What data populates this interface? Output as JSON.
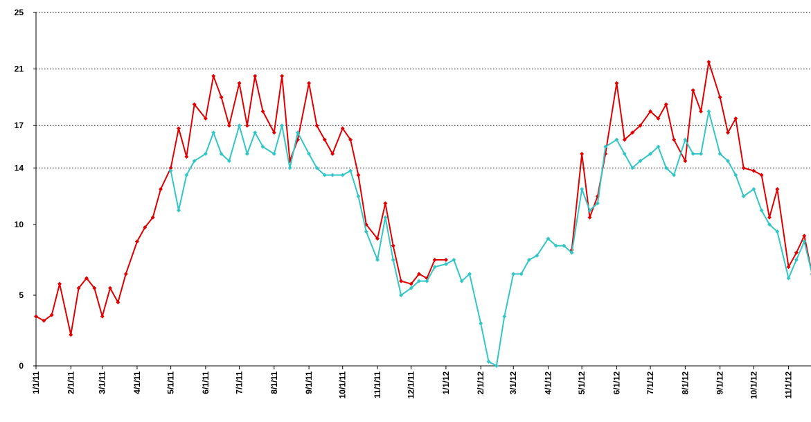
{
  "chart_data": {
    "type": "line",
    "x": [
      "1/1/11",
      "1/8/11",
      "1/15/11",
      "1/22/11",
      "2/1/11",
      "2/8/11",
      "2/15/11",
      "2/22/11",
      "3/1/11",
      "3/8/11",
      "3/15/11",
      "3/22/11",
      "4/1/11",
      "4/8/11",
      "4/15/11",
      "4/22/11",
      "5/1/11",
      "5/8/11",
      "5/15/11",
      "5/22/11",
      "6/1/11",
      "6/8/11",
      "6/15/11",
      "6/22/11",
      "7/1/11",
      "7/8/11",
      "7/15/11",
      "7/22/11",
      "8/1/11",
      "8/8/11",
      "8/15/11",
      "8/22/11",
      "9/1/11",
      "9/8/11",
      "9/15/11",
      "9/22/11",
      "10/1/11",
      "10/8/11",
      "10/15/11",
      "10/22/11",
      "11/1/11",
      "11/8/11",
      "11/15/11",
      "11/22/11",
      "12/1/11",
      "12/8/11",
      "12/15/11",
      "12/22/11",
      "1/1/12",
      "1/8/12",
      "1/15/12",
      "1/22/12",
      "2/1/12",
      "2/8/12",
      "2/15/12",
      "2/22/12",
      "3/1/12",
      "3/8/12",
      "3/15/12",
      "3/22/12",
      "4/1/12",
      "4/8/12",
      "4/15/12",
      "4/22/12",
      "5/1/12",
      "5/8/12",
      "5/15/12",
      "5/22/12",
      "6/1/12",
      "6/8/12",
      "6/15/12",
      "6/22/12",
      "7/1/12",
      "7/8/12",
      "7/15/12",
      "7/22/12",
      "8/1/12",
      "8/8/12",
      "8/15/12",
      "8/22/12",
      "9/1/12",
      "9/8/12",
      "9/15/12",
      "9/22/12",
      "10/1/12",
      "10/8/12",
      "10/15/12",
      "10/22/12",
      "11/1/12",
      "11/8/12",
      "11/15/12",
      "11/22/12"
    ],
    "series": [
      {
        "color": "#e00000",
        "values": [
          3.5,
          3.2,
          3.6,
          5.8,
          2.2,
          5.5,
          6.2,
          5.5,
          3.5,
          5.5,
          4.5,
          6.5,
          8.8,
          9.8,
          10.5,
          12.5,
          14,
          16.8,
          14.8,
          18.5,
          17.5,
          20.5,
          19,
          17,
          20,
          17,
          20.5,
          18,
          16.5,
          20.5,
          14.5,
          16,
          20,
          17,
          16,
          15,
          16.8,
          16,
          13.5,
          10,
          9,
          11.5,
          8.5,
          6,
          5.8,
          6.5,
          6.2,
          7.5,
          7.5,
          null,
          null,
          null,
          null,
          null,
          null,
          null,
          null,
          null,
          null,
          null,
          null,
          null,
          null,
          8.2,
          15,
          10.5,
          12,
          15,
          20,
          16,
          16.5,
          17,
          18,
          17.5,
          18.5,
          16,
          14.5,
          19.5,
          18,
          21.5,
          19,
          16.5,
          17.5,
          14,
          13.8,
          13.5,
          10.5,
          12.5,
          7,
          8,
          9.2,
          6.5
        ]
      },
      {
        "color": "#33c6c6",
        "values": [
          null,
          null,
          null,
          null,
          null,
          null,
          null,
          null,
          null,
          null,
          null,
          null,
          null,
          null,
          null,
          null,
          13.8,
          11,
          13.5,
          14.5,
          15,
          16.5,
          15,
          14.5,
          17,
          15,
          16.5,
          15.5,
          15,
          17,
          14,
          16.5,
          15,
          14,
          13.5,
          13.5,
          13.5,
          13.8,
          12,
          9.5,
          7.5,
          10.5,
          7.5,
          5,
          5.5,
          6,
          6,
          7,
          7.2,
          7.5,
          6,
          6.5,
          3,
          0.3,
          0,
          3.5,
          6.5,
          6.5,
          7.5,
          7.8,
          9,
          8.5,
          8.5,
          8,
          12.5,
          11,
          11.5,
          15.5,
          16,
          15,
          14,
          14.5,
          15,
          15.5,
          14,
          13.5,
          16,
          15,
          15,
          18,
          15,
          14.5,
          13.5,
          12,
          12.5,
          11,
          10,
          9.5,
          6.2,
          7.5,
          8.8,
          6.5
        ]
      }
    ],
    "xlim": [
      "1/1/11",
      "11/21/12"
    ],
    "xticks": [
      "1/1/11",
      "2/1/11",
      "3/1/11",
      "4/1/11",
      "5/1/11",
      "6/1/11",
      "7/1/11",
      "8/1/11",
      "9/1/11",
      "10/1/11",
      "11/1/11",
      "12/1/11",
      "1/1/12",
      "2/1/12",
      "3/1/12",
      "4/1/12",
      "5/1/12",
      "6/1/12",
      "7/1/12",
      "8/1/12",
      "9/1/12",
      "10/1/12",
      "11/1/12"
    ],
    "ylim": [
      0,
      25
    ],
    "yticks": [
      0,
      5,
      10,
      14,
      17,
      21,
      25
    ],
    "grid_lines": [
      14,
      17,
      21,
      25
    ]
  }
}
